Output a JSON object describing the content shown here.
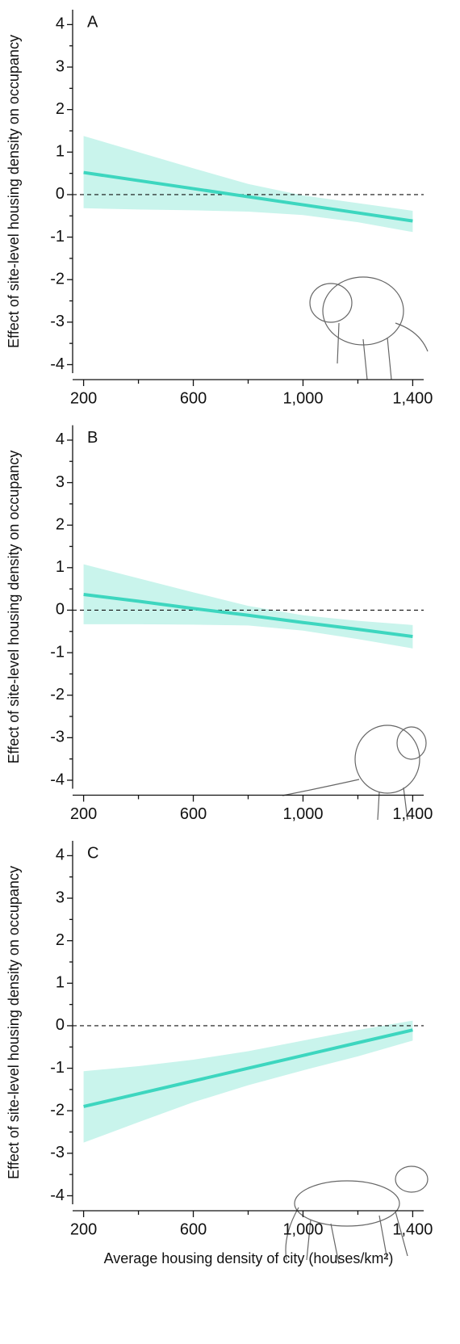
{
  "chart_data": [
    {
      "type": "line",
      "label": "A",
      "ylabel": "Effect of site-level housing density on occupancy",
      "x": [
        200,
        400,
        600,
        800,
        1000,
        1200,
        1400
      ],
      "values": [
        0.52,
        0.33,
        0.14,
        -0.05,
        -0.24,
        -0.43,
        -0.62
      ],
      "ci_upper": [
        1.38,
        1.0,
        0.62,
        0.25,
        -0.02,
        -0.2,
        -0.38
      ],
      "ci_lower": [
        -0.32,
        -0.35,
        -0.37,
        -0.4,
        -0.48,
        -0.65,
        -0.88
      ],
      "color": "#3dd6bf",
      "band_color": "#c9f4ec",
      "zero_line": true,
      "xlim": [
        160,
        1440
      ],
      "ylim": [
        -4.2,
        4.35
      ],
      "xticks": [
        200,
        600,
        {
          "value": 1000,
          "label": "1,000"
        },
        {
          "value": 1400,
          "label": "1,400"
        }
      ],
      "xminor": [
        400,
        800,
        1200
      ],
      "yticks": [
        -4,
        -3,
        -2,
        -1,
        0,
        1,
        2,
        3,
        4
      ]
    },
    {
      "type": "line",
      "label": "B",
      "ylabel": "Effect of site-level housing density on occupancy",
      "x": [
        200,
        400,
        600,
        800,
        1000,
        1200,
        1400
      ],
      "values": [
        0.37,
        0.21,
        0.04,
        -0.12,
        -0.29,
        -0.45,
        -0.62
      ],
      "ci_upper": [
        1.08,
        0.75,
        0.42,
        0.1,
        -0.12,
        -0.25,
        -0.35
      ],
      "ci_lower": [
        -0.33,
        -0.33,
        -0.34,
        -0.36,
        -0.48,
        -0.68,
        -0.9
      ],
      "color": "#3dd6bf",
      "band_color": "#c9f4ec",
      "zero_line": true,
      "xlim": [
        160,
        1440
      ],
      "ylim": [
        -4.2,
        4.35
      ],
      "xticks": [
        200,
        600,
        {
          "value": 1000,
          "label": "1,000"
        },
        {
          "value": 1400,
          "label": "1,400"
        }
      ],
      "xminor": [
        400,
        800,
        1200
      ],
      "yticks": [
        -4,
        -3,
        -2,
        -1,
        0,
        1,
        2,
        3,
        4
      ]
    },
    {
      "type": "line",
      "label": "C",
      "ylabel": "Effect of site-level housing density on occupancy",
      "xlabel": "Average housing density of city (houses/km²)",
      "x": [
        200,
        400,
        600,
        800,
        1000,
        1200,
        1400
      ],
      "values": [
        -1.9,
        -1.6,
        -1.3,
        -1.0,
        -0.7,
        -0.4,
        -0.1
      ],
      "ci_upper": [
        -1.07,
        -0.95,
        -0.8,
        -0.6,
        -0.35,
        -0.1,
        0.12
      ],
      "ci_lower": [
        -2.75,
        -2.27,
        -1.8,
        -1.4,
        -1.05,
        -0.72,
        -0.35
      ],
      "color": "#3dd6bf",
      "band_color": "#c9f4ec",
      "zero_line": true,
      "xlim": [
        160,
        1440
      ],
      "ylim": [
        -4.2,
        4.35
      ],
      "xticks": [
        200,
        600,
        {
          "value": 1000,
          "label": "1,000"
        },
        {
          "value": 1400,
          "label": "1,400"
        }
      ],
      "xminor": [
        400,
        800,
        1200
      ],
      "yticks": [
        -4,
        -3,
        -2,
        -1,
        0,
        1,
        2,
        3,
        4
      ]
    }
  ]
}
